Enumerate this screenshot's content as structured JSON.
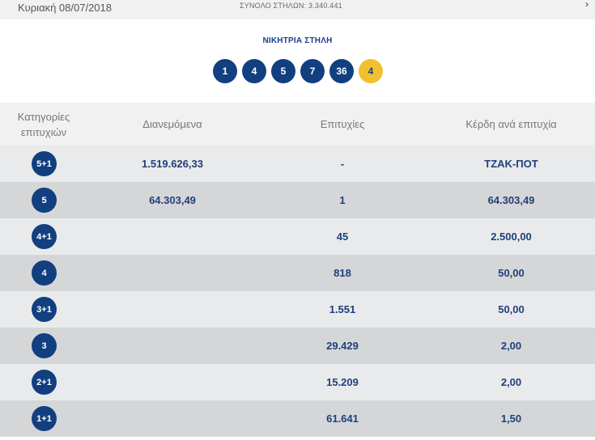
{
  "header": {
    "date": "Κυριακή 08/07/2018",
    "total_columns": "ΣΥΝΟΛΟ ΣΤΗΛΩΝ: 3.340.441"
  },
  "winning": {
    "title": "ΝΙΚΗΤΡΙΑ ΣΤΗΛΗ",
    "numbers": [
      "1",
      "4",
      "5",
      "7",
      "36"
    ],
    "bonus": "4"
  },
  "table": {
    "columns": {
      "category_line1": "Κατηγορίες",
      "category_line2": "επιτυχιών",
      "distributed": "Διανεμόμενα",
      "winners": "Επιτυχίες",
      "prize": "Κέρδη ανά επιτυχία"
    },
    "rows": [
      {
        "category": "5+1",
        "distributed": "1.519.626,33",
        "winners": "-",
        "prize": "ΤΖΑΚ-ΠΟΤ"
      },
      {
        "category": "5",
        "distributed": "64.303,49",
        "winners": "1",
        "prize": "64.303,49"
      },
      {
        "category": "4+1",
        "distributed": "",
        "winners": "45",
        "prize": "2.500,00"
      },
      {
        "category": "4",
        "distributed": "",
        "winners": "818",
        "prize": "50,00"
      },
      {
        "category": "3+1",
        "distributed": "",
        "winners": "1.551",
        "prize": "50,00"
      },
      {
        "category": "3",
        "distributed": "",
        "winners": "29.429",
        "prize": "2,00"
      },
      {
        "category": "2+1",
        "distributed": "",
        "winners": "15.209",
        "prize": "2,00"
      },
      {
        "category": "1+1",
        "distributed": "",
        "winners": "61.641",
        "prize": "1,50"
      }
    ]
  },
  "colors": {
    "ball_primary": "#113f80",
    "ball_bonus": "#f2c02e",
    "row_light": "#e9eaec",
    "row_dark": "#d5d6d8"
  },
  "icons": {
    "corner": "chevron-icon"
  }
}
